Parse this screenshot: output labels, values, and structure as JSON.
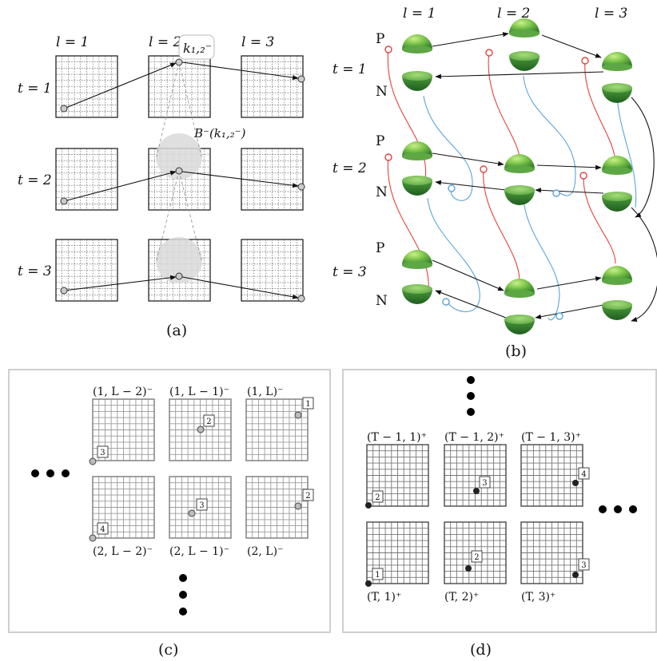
{
  "panel_a": {
    "caption": "(a)",
    "columns": [
      "l = 1",
      "l = 2",
      "l = 3"
    ],
    "rows": [
      "t = 1",
      "t = 2",
      "t = 3"
    ],
    "key_label": "k₁,₂⁻",
    "ball_label": "B⁻(k₁,₂⁻)"
  },
  "panel_b": {
    "caption": "(b)",
    "columns": [
      "l = 1",
      "l = 2",
      "l = 3"
    ],
    "rows": [
      "t = 1",
      "t = 2",
      "t = 3"
    ],
    "pos_label": "P",
    "neg_label": "N",
    "colors": {
      "green_top": "#7bc44a",
      "green_dark": "#2f7d2a",
      "red": "#e0443e",
      "blue": "#5aa5d6"
    }
  },
  "panel_c": {
    "caption": "(c)",
    "top_labels": [
      "(1, L − 2)⁻",
      "(1, L − 1)⁻",
      "(1, L)⁻"
    ],
    "bottom_labels": [
      "(2, L − 2)⁻",
      "(2, L − 1)⁻",
      "(2, L)⁻"
    ],
    "top_ranks": [
      "3",
      "2",
      "1"
    ],
    "bottom_ranks": [
      "4",
      "3",
      "2"
    ]
  },
  "panel_d": {
    "caption": "(d)",
    "top_labels": [
      "(T − 1, 1)⁺",
      "(T − 1, 2)⁺",
      "(T − 1, 3)⁺"
    ],
    "bottom_labels": [
      "(T, 1)⁺",
      "(T, 2)⁺",
      "(T, 3)⁺"
    ],
    "top_ranks": [
      "2",
      "3",
      "4"
    ],
    "bottom_ranks": [
      "1",
      "2",
      "3"
    ]
  }
}
